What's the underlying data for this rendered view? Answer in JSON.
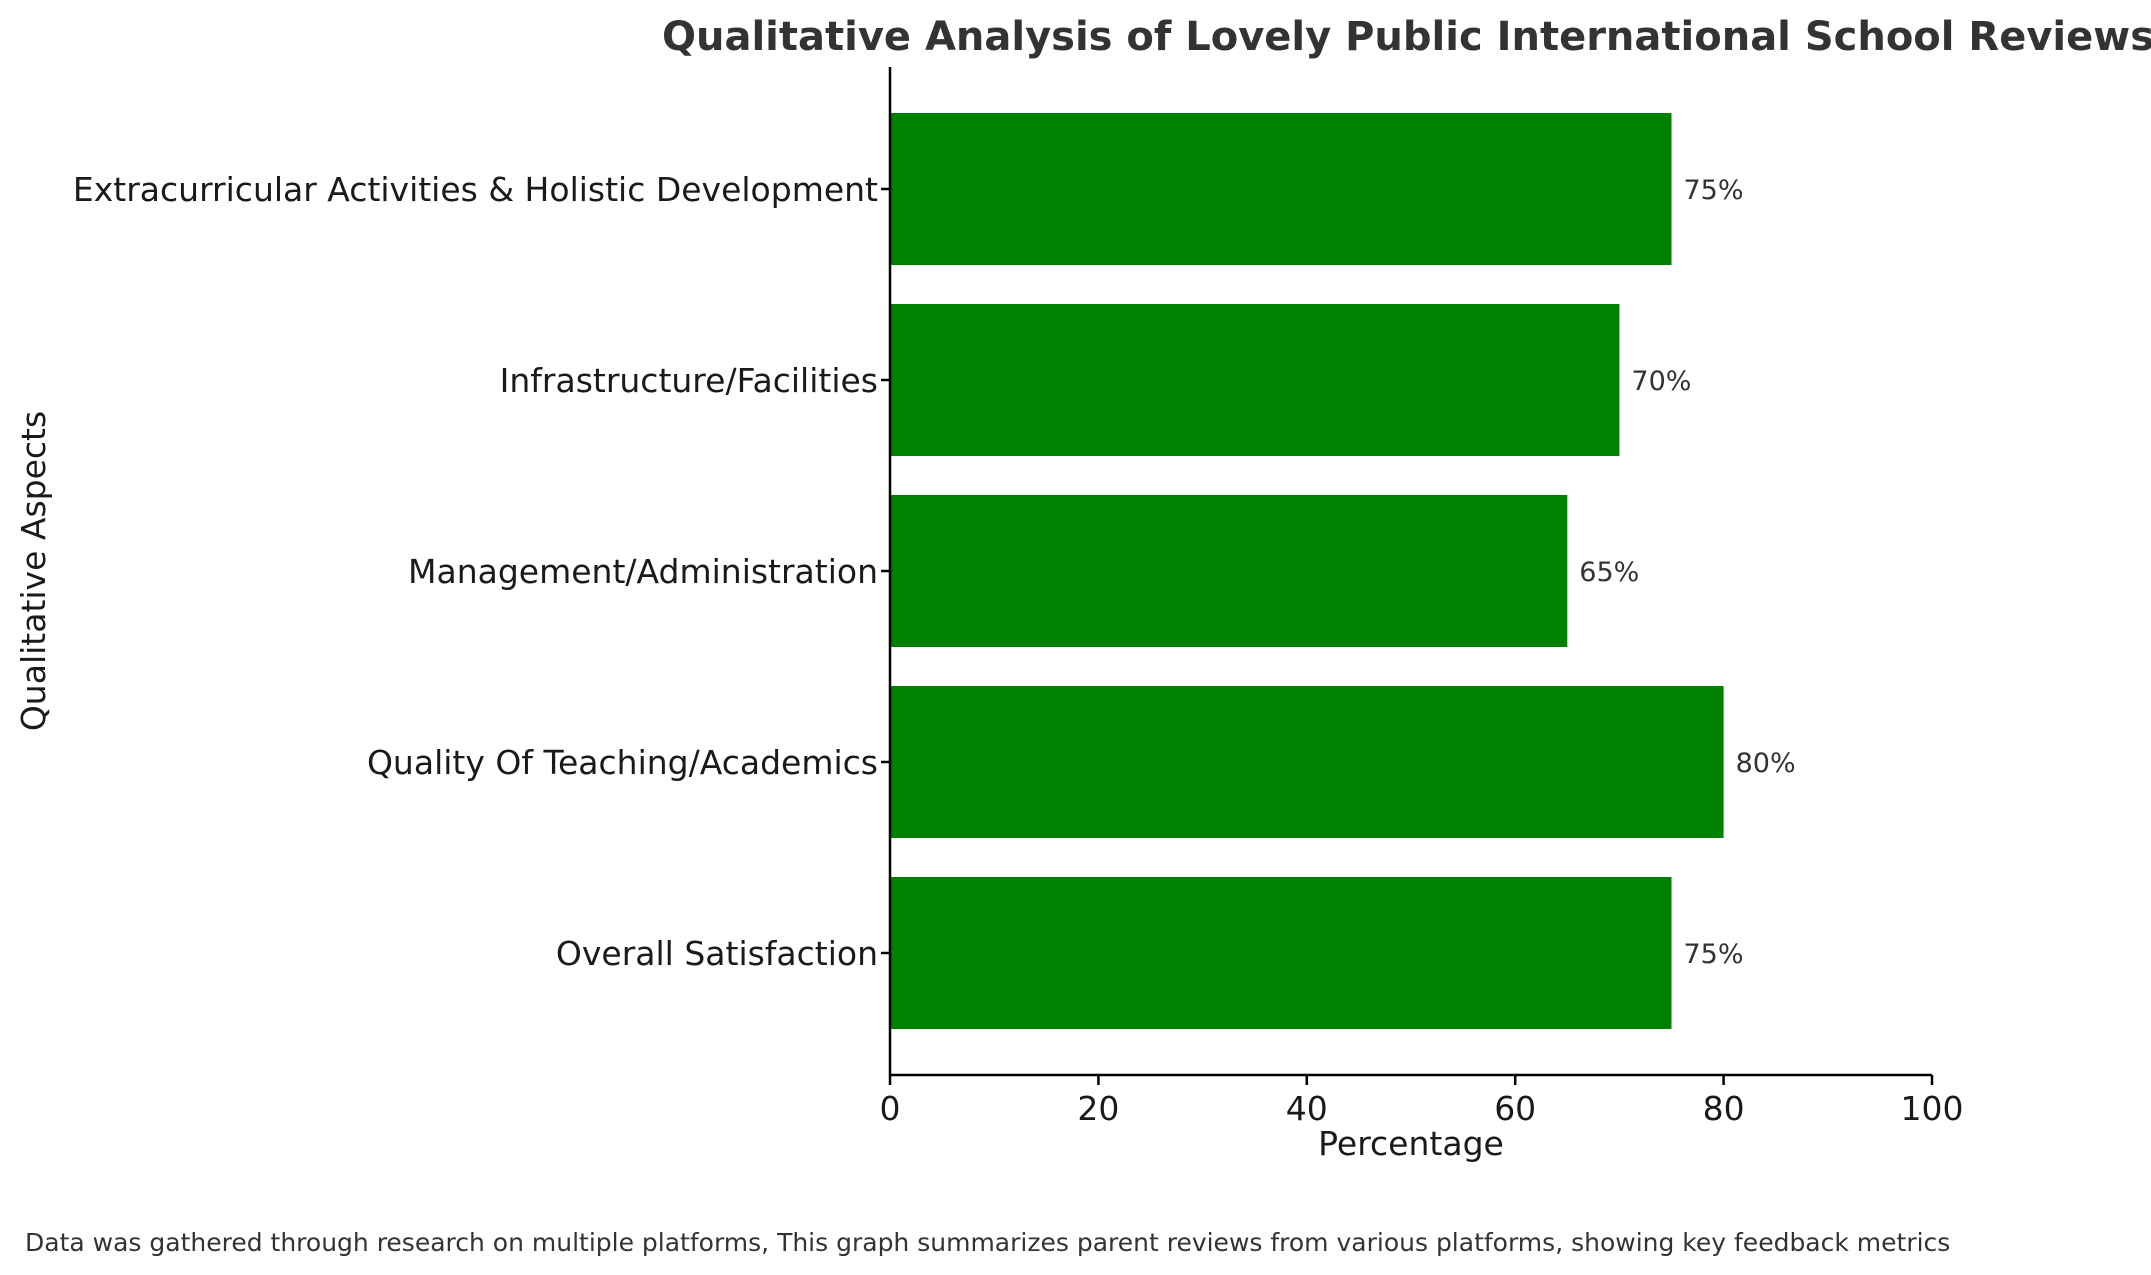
{
  "chart_data": {
    "type": "bar",
    "orientation": "horizontal",
    "title": "Qualitative Analysis of Lovely Public International School Reviews",
    "xlabel": "Percentage",
    "ylabel": "Qualitative Aspects",
    "xlim": [
      0,
      100
    ],
    "xticks": [
      0,
      20,
      40,
      60,
      80,
      100
    ],
    "categories": [
      "Overall Satisfaction",
      "Quality Of Teaching/Academics",
      "Management/Administration",
      "Infrastructure/Facilities",
      "Extracurricular Activities & Holistic Development"
    ],
    "values": [
      75,
      80,
      65,
      70,
      75
    ],
    "value_labels": [
      "75%",
      "80%",
      "65%",
      "70%",
      "75%"
    ],
    "bar_color": "#008000",
    "grid": false,
    "legend": "none"
  },
  "footnote": "Data was gathered through research on multiple platforms, This graph summarizes parent reviews from various platforms, showing key feedback metrics"
}
